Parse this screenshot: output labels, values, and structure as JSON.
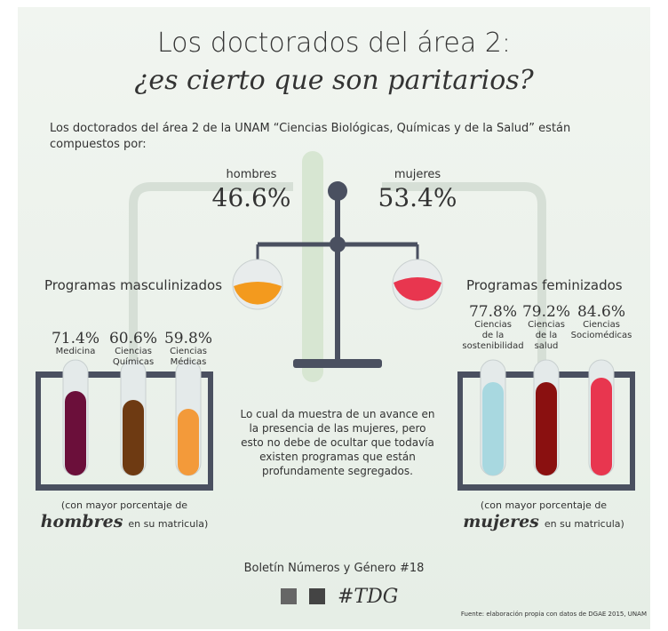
{
  "title": {
    "line1": "Los doctorados del área 2:",
    "line2": "¿es cierto que son paritarios?"
  },
  "intro": [
    "Los doctorados del área 2 de la UNAM “Ciencias Biológicas, Químicas y de la Salud” están",
    "compuestos por:"
  ],
  "scale": {
    "men_label": "hombres",
    "men_value": "46.6%",
    "women_label": "mujeres",
    "women_value": "53.4%"
  },
  "masculine": {
    "heading": "Programas masculinizados",
    "items": [
      {
        "value": "71.4%",
        "label": [
          "Medicina"
        ]
      },
      {
        "value": "60.6%",
        "label": [
          "Ciencias",
          "Químicas"
        ]
      },
      {
        "value": "59.8%",
        "label": [
          "Ciencias",
          "Médicas"
        ]
      }
    ],
    "note": [
      "(con mayor porcentaje de",
      "hombres",
      "en su matricula)"
    ]
  },
  "feminine": {
    "heading": "Programas feminizados",
    "items": [
      {
        "value": "77.8%",
        "label": [
          "Ciencias",
          "de la",
          "sostenibilidad"
        ]
      },
      {
        "value": "79.2%",
        "label": [
          "Ciencias",
          "de la",
          "salud"
        ]
      },
      {
        "value": "84.6%",
        "label": [
          "Ciencias",
          "Sociomédicas"
        ]
      }
    ],
    "note": [
      "(con mayor porcentaje de",
      "mujeres",
      "en su matricula)"
    ]
  },
  "center_text": [
    "Lo cual da muestra de un avance en",
    "la presencia de las mujeres, pero",
    "esto no debe de ocultar que todavía",
    "existen programas que están",
    "profundamente segregados."
  ],
  "footer": {
    "bulletin": "Boletín Números y Género #18",
    "hashtag": "#TDG",
    "source": "Fuente: elaboración propia con datos de DGAE 2015, UNAM"
  }
}
